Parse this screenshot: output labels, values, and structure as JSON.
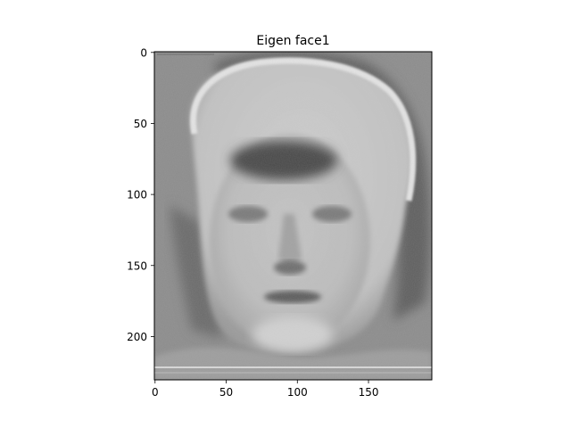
{
  "chart_data": {
    "type": "heatmap",
    "title": "Eigen face1",
    "xlabel": "",
    "ylabel": "",
    "image_shape": [
      231,
      195
    ],
    "xlim": [
      -0.5,
      194.5
    ],
    "ylim": [
      230.5,
      -0.5
    ],
    "xticks": [
      0,
      50,
      100,
      150
    ],
    "yticks": [
      0,
      50,
      100,
      150,
      200
    ],
    "colormap": "gray",
    "grid": false,
    "legend": "none",
    "image_content": "grayscale eigenface of a human face"
  },
  "colors": {
    "background": "#ffffff",
    "axes_edge": "#000000",
    "image_base": "#8c8c8c"
  }
}
